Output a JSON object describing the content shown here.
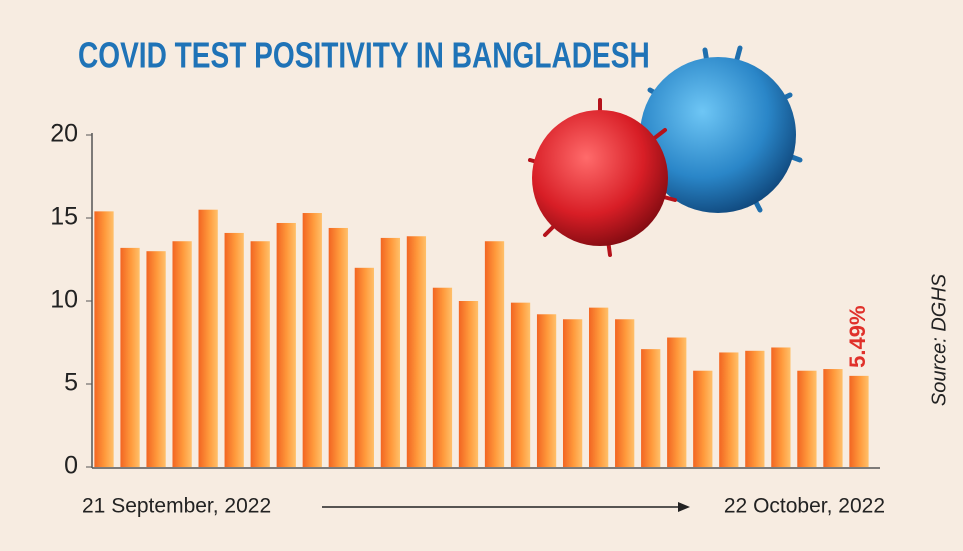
{
  "chart_data": {
    "type": "bar",
    "title": "COVID TEST POSITIVITY IN BANGLADESH",
    "source": "Source: DGHS",
    "categories": [
      "21 September, 2022",
      null,
      null,
      null,
      null,
      null,
      null,
      null,
      null,
      null,
      null,
      null,
      null,
      null,
      null,
      null,
      null,
      null,
      null,
      null,
      null,
      null,
      null,
      null,
      null,
      null,
      null,
      null,
      null,
      "22 October, 2022"
    ],
    "values": [
      15.4,
      13.2,
      13.0,
      13.6,
      15.5,
      14.1,
      13.6,
      14.7,
      15.3,
      14.4,
      12.0,
      13.8,
      13.9,
      10.8,
      10.0,
      13.6,
      9.9,
      9.2,
      8.9,
      9.6,
      8.9,
      7.1,
      7.8,
      5.8,
      6.9,
      7.0,
      7.2,
      5.8,
      5.9,
      5.49
    ],
    "value_labels": [
      null,
      null,
      null,
      null,
      null,
      null,
      null,
      null,
      null,
      null,
      null,
      null,
      null,
      null,
      null,
      null,
      null,
      null,
      null,
      null,
      null,
      null,
      null,
      null,
      null,
      null,
      null,
      null,
      null,
      "5.49%"
    ],
    "color": "#f26522",
    "ylim": [
      0,
      20
    ],
    "yticks": [
      0,
      5,
      10,
      15,
      20
    ],
    "grid": false
  }
}
